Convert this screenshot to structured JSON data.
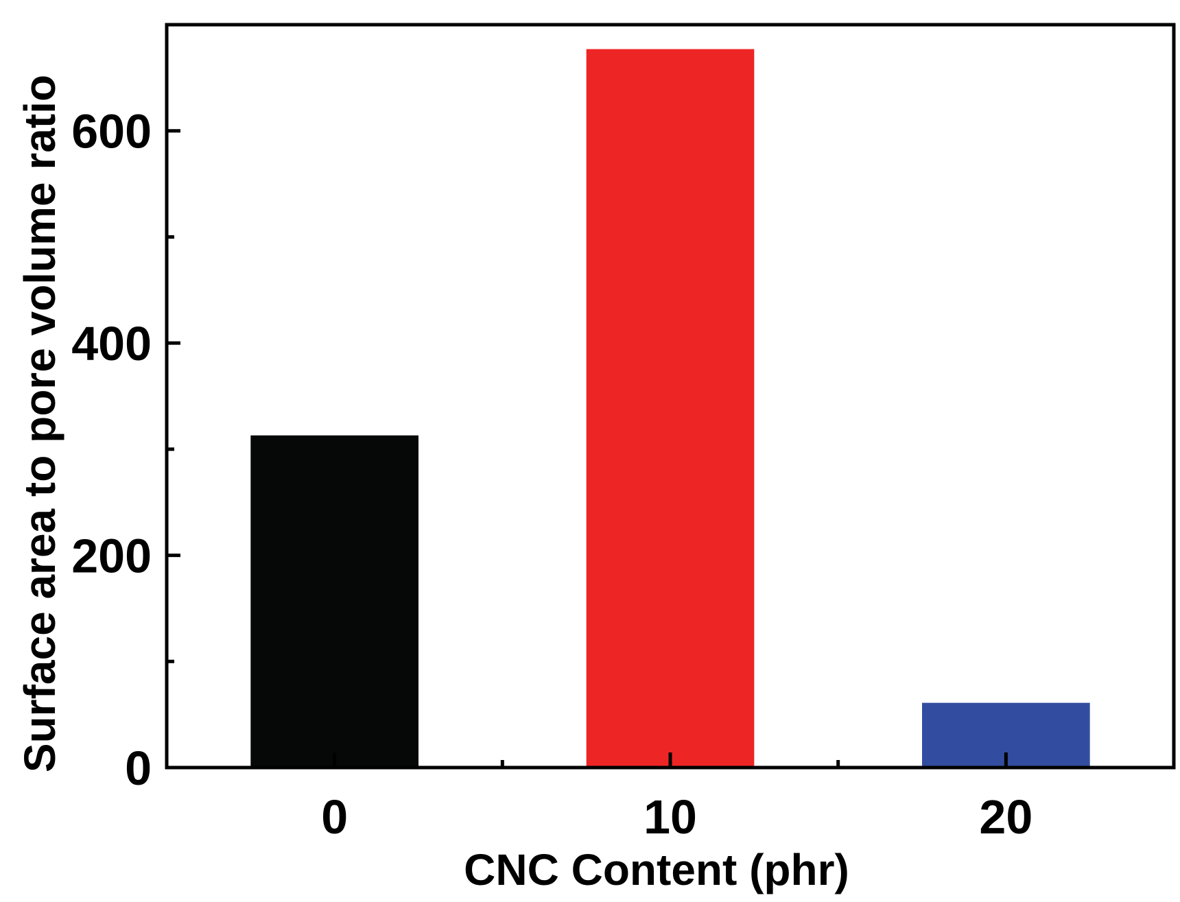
{
  "chart_data": {
    "type": "bar",
    "title": "",
    "xlabel": "CNC Content (phr)",
    "ylabel": "Surface area to pore volume ratio",
    "categories": [
      "0",
      "10",
      "20"
    ],
    "values": [
      313,
      677,
      61
    ],
    "colors": [
      "#060807",
      "#ee2525",
      "#324da0"
    ],
    "ylim": [
      0,
      700
    ],
    "xlim": [
      -5,
      25
    ],
    "y_major_ticks": [
      0,
      200,
      400,
      600
    ],
    "y_minor_ticks": [
      100,
      300,
      500
    ],
    "x_major_ticks": [
      0,
      10,
      20
    ],
    "x_minor_ticks": [
      5,
      15
    ],
    "bar_width": 5,
    "grid": false,
    "legend": "none"
  }
}
